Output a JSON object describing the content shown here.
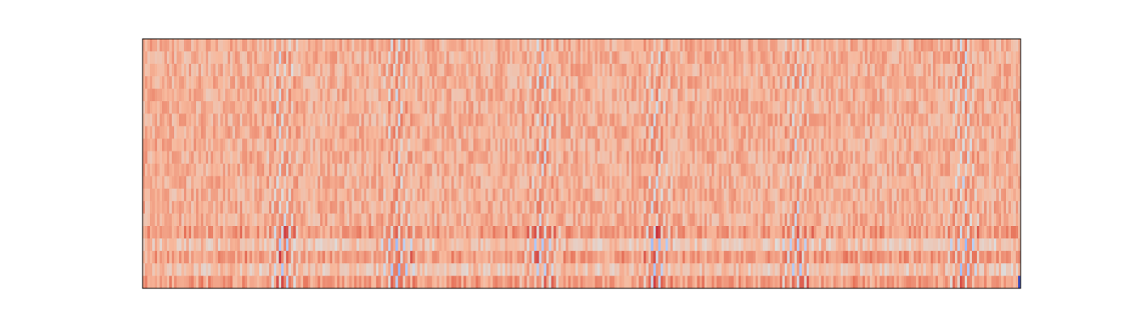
{
  "chart_data": {
    "type": "heatmap",
    "title": "",
    "xlabel": "",
    "ylabel": "",
    "axes_visible": false,
    "grid": false,
    "legend": "none",
    "colormap": "coolwarm",
    "colormap_stops": [
      "#3b4cc0",
      "#6f92f3",
      "#aac7fd",
      "#dddcdc",
      "#f7b89c",
      "#e7745b",
      "#b40426"
    ],
    "value_range": [
      0,
      1
    ],
    "n_rows": 20,
    "n_cols": 361,
    "background_value": 0.68,
    "noise_amplitude": 0.09,
    "low_rows_start_fraction": 0.74,
    "band_centers_fraction": [
      0.16,
      0.29,
      0.455,
      0.585,
      0.745,
      0.935
    ],
    "corner_cell_value": 0.0
  }
}
